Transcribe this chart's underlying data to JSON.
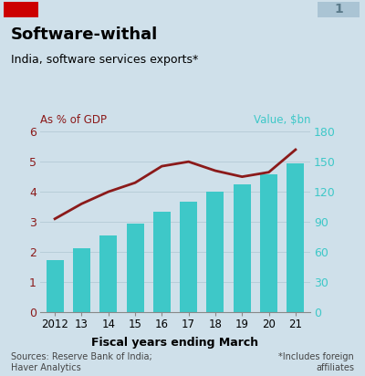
{
  "title": "Software-withal",
  "subtitle": "India, software services exports*",
  "xlabel": "Fiscal years ending March",
  "left_label": "As % of GDP",
  "right_label": "Value, $bn",
  "background_color": "#cfe0ea",
  "bar_color": "#3ec8c8",
  "line_color": "#8b1a1a",
  "years": [
    "2012",
    "13",
    "14",
    "15",
    "16",
    "17",
    "18",
    "19",
    "20",
    "21"
  ],
  "bar_values_bn": [
    52,
    64,
    76,
    88,
    100,
    110,
    120,
    127,
    137,
    148
  ],
  "line_values_pct": [
    3.1,
    3.6,
    4.0,
    4.3,
    4.85,
    5.0,
    4.7,
    4.5,
    4.65,
    5.4
  ],
  "ylim_left": [
    0,
    6
  ],
  "ylim_right": [
    0,
    180
  ],
  "yticks_left": [
    0,
    1,
    2,
    3,
    4,
    5,
    6
  ],
  "yticks_right": [
    0,
    30,
    60,
    90,
    120,
    150,
    180
  ],
  "source_text": "Sources: Reserve Bank of India;\nHaver Analytics",
  "footnote_text": "*Includes foreign\naffiliates",
  "number_badge": "1",
  "red_rect_color": "#cc0000",
  "badge_color": "#aac4d4",
  "badge_text_color": "#5a7a8a",
  "left_tick_color": "#8b1a1a",
  "right_tick_color": "#3ec8c8",
  "grid_color": "#b8cdd8",
  "spine_color": "#888888"
}
